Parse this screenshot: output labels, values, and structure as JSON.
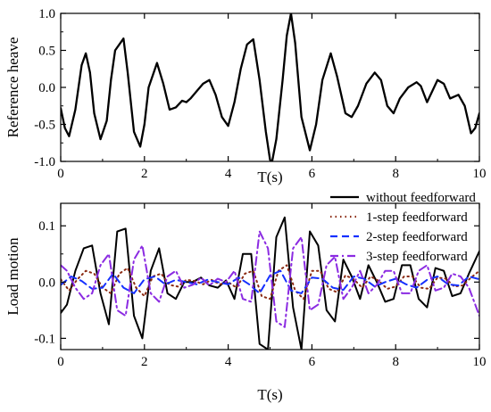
{
  "chart_data": [
    {
      "type": "line",
      "title": "",
      "xlabel": "T(s)",
      "ylabel": "Reference heave",
      "xlim": [
        0,
        10
      ],
      "ylim": [
        -1.0,
        1.0
      ],
      "x_ticks": [
        0,
        2,
        4,
        6,
        8,
        10
      ],
      "x_tick_labels": [
        "0",
        "2",
        "4",
        "6",
        "8",
        "10"
      ],
      "y_ticks": [
        -1.0,
        -0.5,
        0.0,
        0.5,
        1.0
      ],
      "y_tick_labels": [
        "-1.0",
        "-0.5",
        "0.0",
        "0.5",
        "1.0"
      ],
      "grid": false,
      "series": [
        {
          "color": "#000000",
          "dash": "solid",
          "x": [
            0,
            0.1,
            0.2,
            0.35,
            0.5,
            0.6,
            0.7,
            0.8,
            0.95,
            1.1,
            1.2,
            1.3,
            1.5,
            1.6,
            1.75,
            1.9,
            2.0,
            2.1,
            2.3,
            2.45,
            2.6,
            2.75,
            2.9,
            3.0,
            3.1,
            3.25,
            3.4,
            3.55,
            3.7,
            3.85,
            4.0,
            4.15,
            4.3,
            4.45,
            4.6,
            4.75,
            4.9,
            5.0,
            5.05,
            5.15,
            5.3,
            5.4,
            5.5,
            5.6,
            5.75,
            5.95,
            6.1,
            6.25,
            6.45,
            6.6,
            6.8,
            6.95,
            7.1,
            7.3,
            7.5,
            7.65,
            7.8,
            7.95,
            8.1,
            8.3,
            8.5,
            8.6,
            8.75,
            9.0,
            9.15,
            9.3,
            9.5,
            9.65,
            9.8,
            9.9,
            10.0
          ],
          "y": [
            -0.28,
            -0.55,
            -0.66,
            -0.3,
            0.3,
            0.46,
            0.2,
            -0.35,
            -0.7,
            -0.45,
            0.1,
            0.5,
            0.66,
            0.2,
            -0.6,
            -0.8,
            -0.5,
            0.0,
            0.33,
            0.05,
            -0.3,
            -0.27,
            -0.18,
            -0.2,
            -0.15,
            -0.05,
            0.05,
            0.1,
            -0.1,
            -0.4,
            -0.52,
            -0.2,
            0.25,
            0.58,
            0.65,
            0.1,
            -0.6,
            -0.98,
            -1.0,
            -0.7,
            0.1,
            0.7,
            1.0,
            0.6,
            -0.4,
            -0.85,
            -0.5,
            0.1,
            0.46,
            0.15,
            -0.35,
            -0.4,
            -0.25,
            0.05,
            0.2,
            0.1,
            -0.25,
            -0.35,
            -0.15,
            0.0,
            0.07,
            0.02,
            -0.2,
            0.1,
            0.05,
            -0.15,
            -0.1,
            -0.25,
            -0.62,
            -0.55,
            -0.35
          ]
        }
      ]
    },
    {
      "type": "line",
      "title": "",
      "xlabel": "T(s)",
      "ylabel": "Load motion",
      "xlim": [
        0,
        10
      ],
      "ylim": [
        -0.12,
        0.14
      ],
      "x_ticks": [
        0,
        2,
        4,
        6,
        8,
        10
      ],
      "x_tick_labels": [
        "0",
        "2",
        "4",
        "6",
        "8",
        "10"
      ],
      "y_ticks": [
        -0.1,
        0.0,
        0.1
      ],
      "y_tick_labels": [
        "-0.1",
        "0.0",
        "0.1"
      ],
      "grid": false,
      "legend_position": "top-right",
      "series": [
        {
          "name": "without feedforward",
          "color": "#000000",
          "dash": "solid",
          "x": [
            0,
            0.15,
            0.35,
            0.55,
            0.75,
            0.95,
            1.15,
            1.35,
            1.55,
            1.75,
            1.95,
            2.15,
            2.35,
            2.55,
            2.75,
            2.95,
            3.15,
            3.35,
            3.55,
            3.75,
            3.95,
            4.15,
            4.35,
            4.55,
            4.75,
            4.95,
            5.15,
            5.35,
            5.55,
            5.75,
            5.95,
            6.15,
            6.35,
            6.55,
            6.75,
            6.95,
            7.15,
            7.35,
            7.55,
            7.75,
            7.95,
            8.15,
            8.35,
            8.55,
            8.75,
            8.95,
            9.15,
            9.35,
            9.55,
            9.75,
            10.0
          ],
          "y": [
            -0.055,
            -0.04,
            0.02,
            0.06,
            0.065,
            -0.02,
            -0.075,
            0.09,
            0.095,
            -0.06,
            -0.1,
            0.02,
            0.06,
            -0.02,
            -0.03,
            0.0,
            0.0,
            0.008,
            -0.006,
            -0.01,
            0.003,
            -0.03,
            0.05,
            0.05,
            -0.11,
            -0.12,
            0.08,
            0.115,
            -0.045,
            -0.12,
            0.09,
            0.065,
            -0.05,
            -0.07,
            0.04,
            0.01,
            -0.03,
            0.03,
            0.0,
            -0.035,
            -0.03,
            0.03,
            0.03,
            -0.03,
            -0.045,
            0.025,
            0.02,
            -0.025,
            -0.02,
            0.015,
            0.055
          ]
        },
        {
          "name": "1-step feedforward",
          "color": "#8b2a12",
          "dash": "dot",
          "x": [
            0,
            0.2,
            0.4,
            0.6,
            0.8,
            1.0,
            1.2,
            1.4,
            1.6,
            1.8,
            2.0,
            2.2,
            2.4,
            2.6,
            2.8,
            3.0,
            3.2,
            3.4,
            3.6,
            3.8,
            4.0,
            4.2,
            4.4,
            4.6,
            4.8,
            5.0,
            5.2,
            5.4,
            5.6,
            5.8,
            6.0,
            6.2,
            6.4,
            6.6,
            6.8,
            7.0,
            7.2,
            7.4,
            7.6,
            7.8,
            8.0,
            8.2,
            8.4,
            8.6,
            8.8,
            9.0,
            9.2,
            9.4,
            9.6,
            9.8,
            10.0
          ],
          "y": [
            0.005,
            -0.015,
            0.005,
            0.02,
            0.015,
            -0.01,
            -0.02,
            0.015,
            0.025,
            -0.01,
            -0.025,
            0.01,
            0.015,
            -0.005,
            -0.008,
            0.004,
            0.002,
            -0.004,
            0.004,
            -0.004,
            0.0,
            -0.01,
            0.015,
            0.02,
            -0.025,
            -0.03,
            0.02,
            0.03,
            -0.015,
            -0.03,
            0.02,
            0.02,
            -0.012,
            -0.018,
            0.012,
            0.005,
            -0.01,
            0.01,
            0.002,
            -0.012,
            -0.008,
            0.01,
            0.01,
            -0.01,
            -0.012,
            0.008,
            0.006,
            -0.008,
            -0.006,
            0.008,
            0.02
          ]
        },
        {
          "name": "2-step feedforward",
          "color": "#1530ff",
          "dash": "dash",
          "x": [
            0,
            0.25,
            0.5,
            0.75,
            1.0,
            1.25,
            1.5,
            1.75,
            2.0,
            2.25,
            2.5,
            2.75,
            3.0,
            3.25,
            3.5,
            3.75,
            4.0,
            4.25,
            4.5,
            4.75,
            5.0,
            5.25,
            5.5,
            5.75,
            6.0,
            6.25,
            6.5,
            6.75,
            7.0,
            7.25,
            7.5,
            7.75,
            8.0,
            8.25,
            8.5,
            8.75,
            9.0,
            9.25,
            9.5,
            9.75,
            10.0
          ],
          "y": [
            -0.005,
            0.01,
            0.002,
            -0.012,
            -0.01,
            0.015,
            -0.01,
            -0.02,
            0.005,
            0.01,
            -0.004,
            0.004,
            0.0,
            -0.004,
            0.004,
            0.0,
            -0.004,
            0.008,
            -0.004,
            -0.02,
            0.012,
            0.02,
            -0.015,
            -0.02,
            0.008,
            0.006,
            -0.01,
            -0.014,
            0.01,
            0.006,
            -0.008,
            0.0,
            0.006,
            -0.004,
            -0.01,
            0.004,
            0.01,
            -0.004,
            -0.006,
            0.01,
            0.005
          ]
        },
        {
          "name": "3-step feedforward",
          "color": "#8b2be2",
          "dash": "dashdot",
          "x": [
            0,
            0.15,
            0.35,
            0.55,
            0.75,
            0.95,
            1.15,
            1.35,
            1.55,
            1.75,
            1.95,
            2.15,
            2.35,
            2.55,
            2.75,
            2.95,
            3.15,
            3.35,
            3.55,
            3.75,
            3.95,
            4.15,
            4.35,
            4.55,
            4.75,
            4.95,
            5.15,
            5.35,
            5.55,
            5.75,
            5.95,
            6.15,
            6.35,
            6.55,
            6.75,
            6.95,
            7.15,
            7.35,
            7.55,
            7.75,
            7.95,
            8.15,
            8.35,
            8.55,
            8.75,
            8.95,
            9.15,
            9.35,
            9.55,
            9.75,
            10.0
          ],
          "y": [
            0.03,
            0.02,
            -0.01,
            -0.03,
            -0.02,
            0.03,
            0.05,
            -0.05,
            -0.06,
            0.04,
            0.065,
            -0.02,
            -0.035,
            0.01,
            0.02,
            -0.01,
            -0.005,
            0.008,
            -0.006,
            0.006,
            0.0,
            0.02,
            -0.03,
            -0.035,
            0.09,
            0.06,
            -0.07,
            -0.08,
            0.06,
            0.08,
            -0.05,
            -0.04,
            0.03,
            0.045,
            -0.03,
            -0.01,
            0.02,
            -0.02,
            -0.005,
            0.02,
            0.02,
            -0.02,
            -0.02,
            0.02,
            0.03,
            -0.015,
            -0.01,
            0.015,
            0.01,
            -0.01,
            -0.06
          ]
        }
      ]
    }
  ]
}
